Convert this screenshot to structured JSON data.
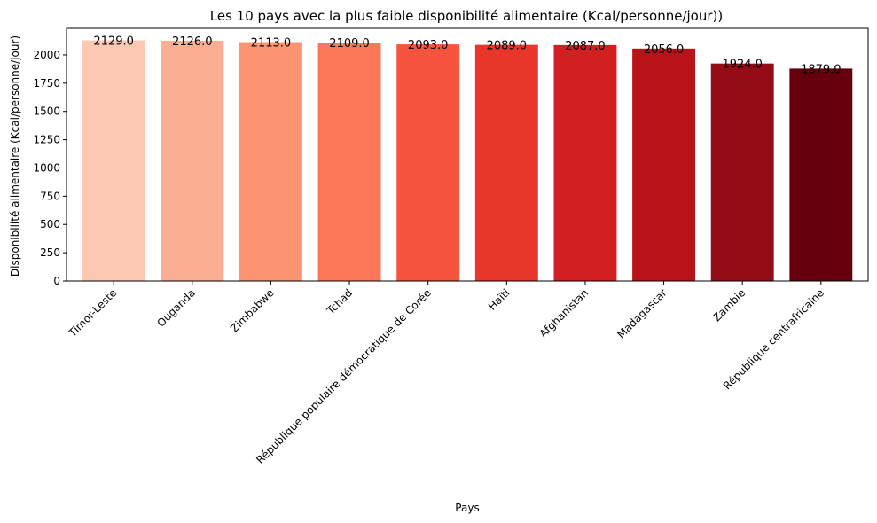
{
  "chart_data": {
    "type": "bar",
    "title": "Les 10 pays avec la plus faible disponibilité alimentaire (Kcal/personne/jour))",
    "xlabel": "Pays",
    "ylabel": "Disponibilité alimentaire (Kcal/personne/jour)",
    "categories": [
      "Timor-Leste",
      "Ouganda",
      "Zimbabwe",
      "Tchad",
      "République populaire démocratique de Corée",
      "Haïti",
      "Afghanistan",
      "Madagascar",
      "Zambie",
      "République centrafricaine"
    ],
    "values": [
      2129,
      2126,
      2113,
      2109,
      2093,
      2089,
      2087,
      2056,
      1924,
      1879
    ],
    "value_labels": [
      "2129.0",
      "2126.0",
      "2113.0",
      "2109.0",
      "2093.0",
      "2089.0",
      "2087.0",
      "2056.0",
      "1924.0",
      "1879.0"
    ],
    "ylim": [
      0,
      2235
    ],
    "yticks": [
      0,
      250,
      500,
      750,
      1000,
      1250,
      1500,
      1750,
      2000
    ],
    "colors": [
      "#fcc7b3",
      "#fcae92",
      "#fc9474",
      "#fc7757",
      "#f5553d",
      "#e8362b",
      "#d11f22",
      "#b71319",
      "#930c16",
      "#67000d"
    ],
    "grid": false,
    "legend": false
  }
}
